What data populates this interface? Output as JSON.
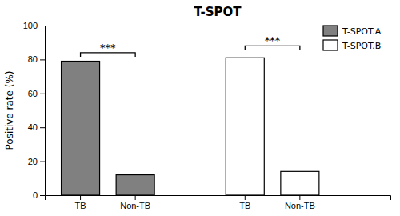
{
  "chart_data": {
    "type": "bar",
    "title": "T-SPOT",
    "ylabel": "Positive rate (%)",
    "categories": [
      "TB",
      "Non-TB",
      null,
      "TB",
      "Non-TB",
      null
    ],
    "series": [
      {
        "name": "T-SPOT.A",
        "color": "#808080",
        "values": [
          79,
          12,
          null,
          null,
          null,
          null
        ]
      },
      {
        "name": "T-SPOT.B",
        "color": "#ffffff",
        "values": [
          null,
          null,
          null,
          81,
          14,
          null
        ]
      }
    ],
    "annotations": [
      {
        "text": "***",
        "from": 0,
        "to": 1,
        "y": 84
      },
      {
        "text": "***",
        "from": 3,
        "to": 4,
        "y": 88
      }
    ],
    "ylim": [
      0,
      100
    ],
    "yticks": [
      0,
      20,
      40,
      60,
      80,
      100
    ],
    "grid": false,
    "legend": "upper right"
  }
}
